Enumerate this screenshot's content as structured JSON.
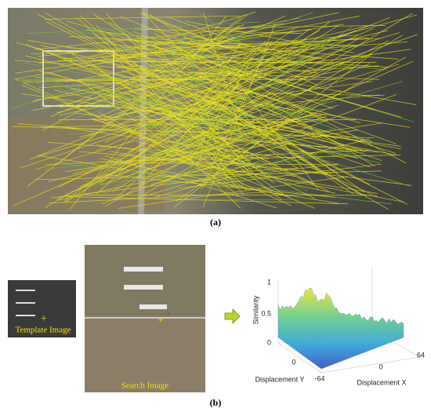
{
  "figure": {
    "panel_a": {
      "label": "(a)"
    },
    "panel_b": {
      "label": "(b)",
      "template_image": {
        "label": "Template Image"
      },
      "search_image": {
        "label": "Search Image"
      },
      "surface_plot": {
        "z_axis_label": "Similarity",
        "z_ticks": [
          1,
          0.5,
          0
        ],
        "y_axis_label": "Displacement Y",
        "y_ticks": [
          0,
          -64
        ],
        "x_axis_label": "Displacement X",
        "x_ticks": [
          0,
          64
        ]
      }
    }
  }
}
